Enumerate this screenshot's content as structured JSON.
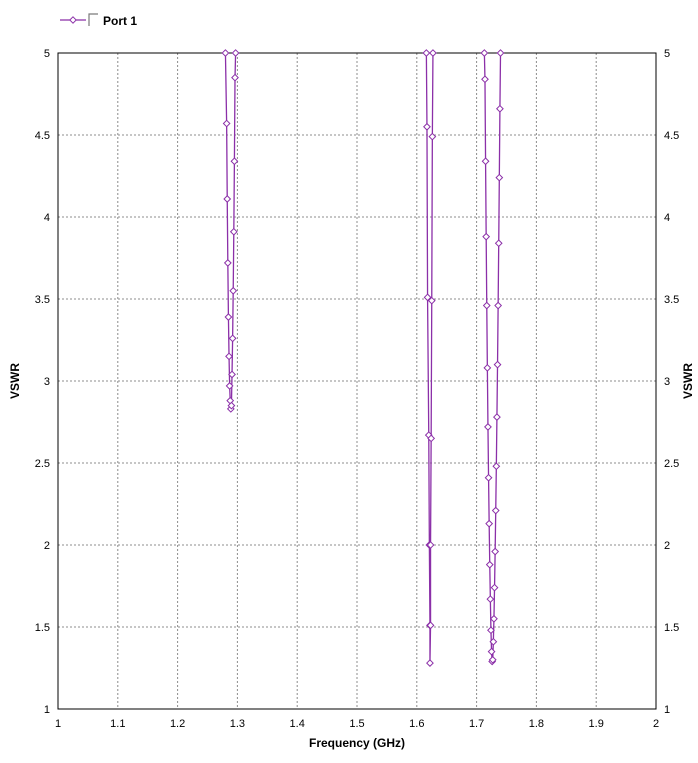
{
  "chart_data": {
    "type": "line",
    "xlabel": "Frequency (GHz)",
    "ylabel": "VSWR",
    "y2label": "VSWR",
    "xlim": [
      1,
      2
    ],
    "ylim": [
      1,
      5
    ],
    "x_ticks": [
      1,
      1.1,
      1.2,
      1.3,
      1.4,
      1.5,
      1.6,
      1.7,
      1.8,
      1.9,
      2
    ],
    "x_tick_labels": [
      "1",
      "1.1",
      "1.2",
      "1.3",
      "1.4",
      "1.5",
      "1.6",
      "1.7",
      "1.8",
      "1.9",
      "2"
    ],
    "y_ticks": [
      1,
      1.5,
      2,
      2.5,
      3,
      3.5,
      4,
      4.5,
      5
    ],
    "y_tick_labels": [
      "1",
      "1.5",
      "2",
      "2.5",
      "3",
      "3.5",
      "4",
      "4.5",
      "5"
    ],
    "grid": true,
    "legend_position": "top-left",
    "series": [
      {
        "name": "Port 1",
        "color": "#8b2fa8",
        "marker": "diamond",
        "points": [
          [
            1.28,
            5.0
          ],
          [
            1.282,
            4.57
          ],
          [
            1.283,
            4.11
          ],
          [
            1.284,
            3.72
          ],
          [
            1.285,
            3.39
          ],
          [
            1.286,
            3.15
          ],
          [
            1.287,
            2.97
          ],
          [
            1.288,
            2.88
          ],
          [
            1.289,
            2.83
          ],
          [
            1.29,
            2.85
          ],
          [
            1.291,
            3.04
          ],
          [
            1.292,
            3.26
          ],
          [
            1.293,
            3.55
          ],
          [
            1.294,
            3.91
          ],
          [
            1.295,
            4.34
          ],
          [
            1.296,
            4.85
          ],
          [
            1.297,
            5.0
          ],
          [
            1.616,
            5.0
          ],
          [
            1.617,
            4.55
          ],
          [
            1.618,
            3.51
          ],
          [
            1.62,
            2.67
          ],
          [
            1.621,
            2.0
          ],
          [
            1.622,
            1.51
          ],
          [
            1.622,
            1.28
          ],
          [
            1.623,
            1.51
          ],
          [
            1.623,
            2.0
          ],
          [
            1.624,
            2.65
          ],
          [
            1.625,
            3.49
          ],
          [
            1.626,
            4.49
          ],
          [
            1.627,
            5.0
          ],
          [
            1.713,
            5.0
          ],
          [
            1.714,
            4.84
          ],
          [
            1.715,
            4.34
          ],
          [
            1.716,
            3.88
          ],
          [
            1.717,
            3.46
          ],
          [
            1.718,
            3.08
          ],
          [
            1.719,
            2.72
          ],
          [
            1.72,
            2.41
          ],
          [
            1.721,
            2.13
          ],
          [
            1.722,
            1.88
          ],
          [
            1.723,
            1.67
          ],
          [
            1.724,
            1.48
          ],
          [
            1.725,
            1.35
          ],
          [
            1.726,
            1.29
          ],
          [
            1.727,
            1.3
          ],
          [
            1.728,
            1.41
          ],
          [
            1.729,
            1.55
          ],
          [
            1.73,
            1.74
          ],
          [
            1.731,
            1.96
          ],
          [
            1.732,
            2.21
          ],
          [
            1.733,
            2.48
          ],
          [
            1.734,
            2.78
          ],
          [
            1.735,
            3.1
          ],
          [
            1.736,
            3.46
          ],
          [
            1.737,
            3.84
          ],
          [
            1.738,
            4.24
          ],
          [
            1.739,
            4.66
          ],
          [
            1.74,
            5.0
          ]
        ]
      }
    ]
  }
}
